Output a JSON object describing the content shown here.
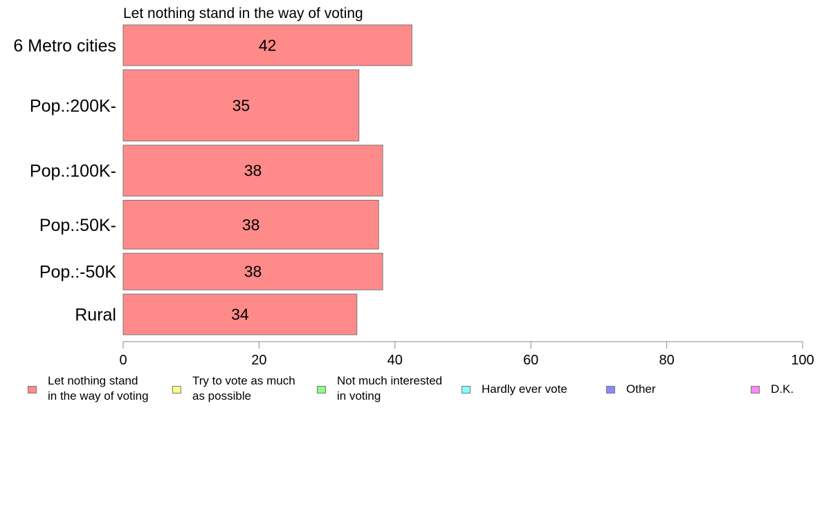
{
  "chart_data": {
    "type": "bar",
    "orientation": "horizontal",
    "title": "Let nothing stand in the way of voting",
    "categories": [
      "6 Metro cities",
      "Pop.:200K-",
      "Pop.:100K-",
      "Pop.:50K-",
      "Pop.:-50K",
      "Rural"
    ],
    "category_weights": [
      1.0,
      1.75,
      1.25,
      1.2,
      0.9,
      1.0
    ],
    "series": [
      {
        "name": "Let nothing stand\nin the way of voting",
        "color": "#ff8a8a",
        "values": [
          42.5,
          34.7,
          38.2,
          37.6,
          38.2,
          34.4
        ],
        "labels": [
          "42",
          "35",
          "38",
          "38",
          "38",
          "34"
        ]
      }
    ],
    "xlim": [
      0,
      100
    ],
    "xticks": [
      0,
      20,
      40,
      60,
      80,
      100
    ],
    "xtick_labels": [
      "0",
      "20",
      "40",
      "60",
      "80",
      "100"
    ],
    "grid": false,
    "legend_position": "bottom"
  },
  "legend": {
    "items": [
      {
        "label": "Let nothing stand\nin the way of voting",
        "color": "#ff8a8a"
      },
      {
        "label": "Try to vote as much\nas possible",
        "color": "#ffff88"
      },
      {
        "label": "Not much interested\nin voting",
        "color": "#88ff88"
      },
      {
        "label": "Hardly ever vote",
        "color": "#88ffff"
      },
      {
        "label": "Other",
        "color": "#8888ff"
      },
      {
        "label": "D.K.",
        "color": "#ff88ff"
      }
    ]
  }
}
